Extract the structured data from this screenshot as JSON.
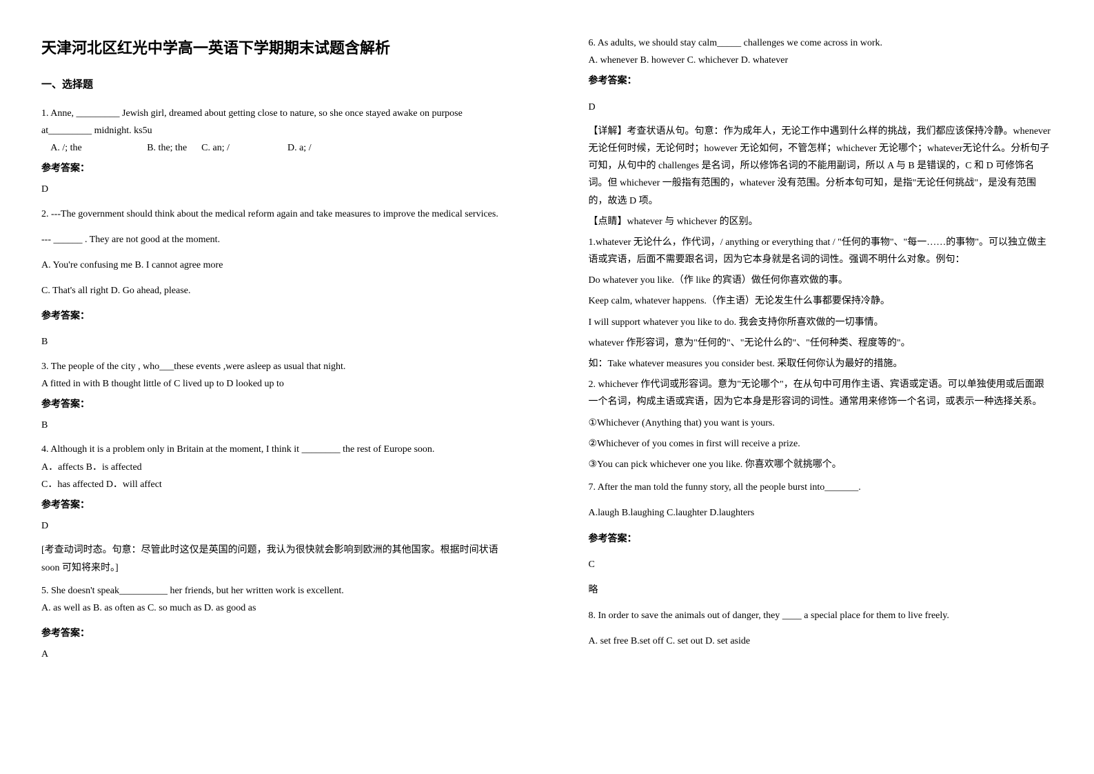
{
  "left": {
    "title": "天津河北区红光中学高一英语下学期期末试题含解析",
    "section": "一、选择题",
    "q1": {
      "text": "1. Anne, _________ Jewish girl, dreamed about getting close to nature, so she once stayed awake on purpose at_________ midnight.    ks5u",
      "options": "    A. /; the                           B. the; the      C. an; /                        D. a; /",
      "answerLabel": "参考答案：",
      "answer": "D"
    },
    "q2": {
      "text": "2. ---The government should think about the medical reform again and take measures to improve the medical services.",
      "line2": "--- ______ . They are not good at the moment.",
      "optA": "A. You're confusing me        B. I cannot agree more",
      "optC": "C. That's all right           D. Go ahead, please.",
      "answerLabel": "参考答案：",
      "answer": "B"
    },
    "q3": {
      "text": "3. The people of the city , who___these events ,were asleep as usual that night.",
      "options": " A fitted in with   B  thought little of  C lived up to   D looked up to",
      "answerLabel": "参考答案：",
      "answer": "B"
    },
    "q4": {
      "text": "4. Although it is a problem only in Britain at the moment, I think it ________ the rest of Europe soon.",
      "optA": "A．affects                          B．is affected",
      "optC": "C．has affected                  D．will affect",
      "answerLabel": "参考答案：",
      "answer": "D",
      "explain": "[考查动词时态。句意：尽管此时这仅是英国的问题，我认为很快就会影响到欧洲的其他国家。根据时间状语 soon 可知将来时。]"
    },
    "q5": {
      "text": " 5.  She doesn't speak__________ her friends, but her written work is excellent.",
      "options": " A. as well as     B. as often as    C. so much as       D. as good as",
      "answerLabel": "参考答案：",
      "answer": "A"
    }
  },
  "right": {
    "q6": {
      "text": "6. As adults, we should stay calm_____ challenges we come across in work.",
      "options": "A. whenever    B. however    C. whichever    D. whatever",
      "answerLabel": "参考答案：",
      "answer": "D",
      "explain1": "【详解】考查状语从句。句意：作为成年人，无论工作中遇到什么样的挑战，我们都应该保持冷静。whenever 无论任何时候，无论何时；however 无论如何，不管怎样；whichever 无论哪个；whatever无论什么。分析句子可知，从句中的 challenges 是名词，所以修饰名词的不能用副词，所以 A 与 B 是错误的，C 和 D 可修饰名词。但 whichever 一般指有范围的，whatever 没有范围。分析本句可知，是指\"无论任何挑战\"，是没有范围的，故选 D 项。",
      "tip": "【点睛】whatever 与 whichever 的区别。",
      "p1": "1.whatever 无论什么，作代词，/ anything or everything that / \"任何的事物\"、\"每一……的事物\"。可以独立做主语或宾语，后面不需要跟名词，因为它本身就是名词的词性。强调不明什么对象。例句：",
      "p1a": "Do whatever you like.（作 like 的宾语）做任何你喜欢做的事。",
      "p1b": "Keep calm, whatever happens.（作主语）无论发生什么事都要保持冷静。",
      "p1c": "I will support whatever you like to do. 我会支持你所喜欢做的一切事情。",
      "p1d": "whatever 作形容词，意为\"任何的\"、\"无论什么的\"、\"任何种类、程度等的\"。",
      "p1e": "如：Take whatever measures you consider best. 采取任何你认为最好的措施。",
      "p2": "2. whichever 作代词或形容词。意为\"无论哪个\"，在从句中可用作主语、宾语或定语。可以单独使用或后面跟一个名词，构成主语或宾语，因为它本身是形容词的词性。通常用来修饰一个名词，或表示一种选择关系。",
      "p2a": "①Whichever (Anything that) you want is yours.",
      "p2b": "②Whichever of you comes in first will receive a prize.",
      "p2c": "③You can pick whichever one you like. 你喜欢哪个就挑哪个。"
    },
    "q7": {
      "text": "7. After the man told the funny story, all the people burst into_______.",
      "options": "A.laugh        B.laughing        C.laughter       D.laughters",
      "answerLabel": "参考答案：",
      "answer": "C",
      "note": "略"
    },
    "q8": {
      "text": "8. In order to save the animals out of danger, they ____ a special place for them to live freely.",
      "options": "A. set free               B.set off                     C. set out                   D. set aside"
    }
  }
}
